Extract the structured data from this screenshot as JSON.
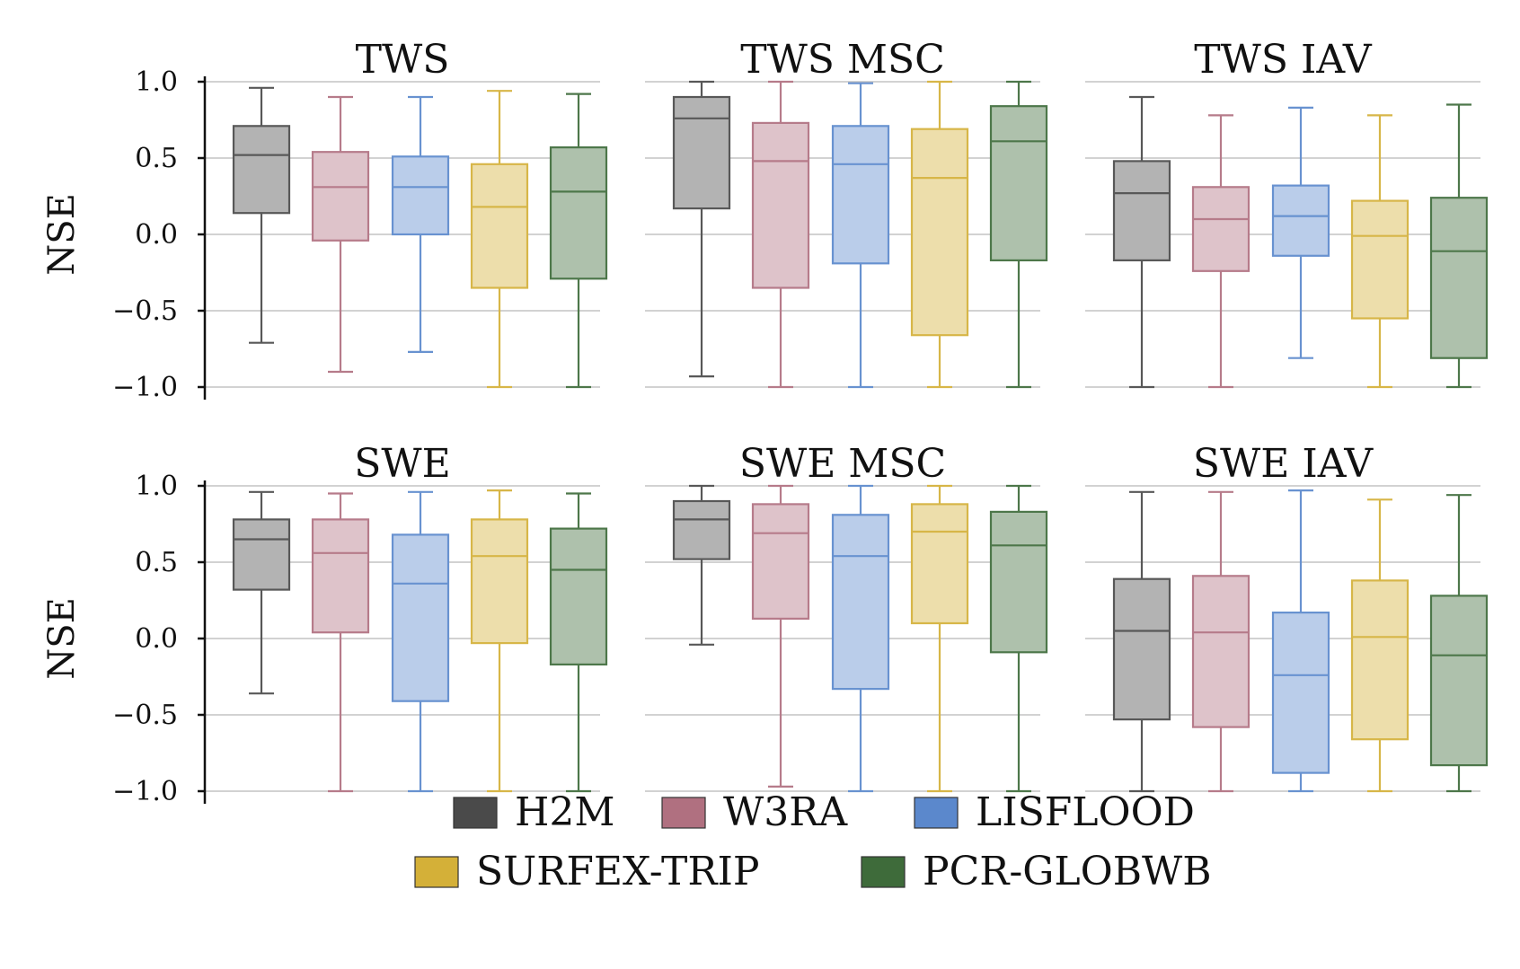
{
  "chart_data": {
    "type": "box",
    "ylabel": "NSE",
    "ylim": [
      -1.0,
      1.0
    ],
    "y_ticks": [
      1.0,
      0.5,
      0.0,
      -0.5,
      -1.0
    ],
    "y_tick_labels": [
      "1.0",
      "0.5",
      "0.0",
      "−0.5",
      "−1.0"
    ],
    "grid": true,
    "legend_position": "bottom-center",
    "series": [
      {
        "name": "H2M",
        "color": "#4a4a4a"
      },
      {
        "name": "W3RA",
        "color": "#b07080"
      },
      {
        "name": "LISFLOOD",
        "color": "#5b88cc"
      },
      {
        "name": "SURFEX-TRIP",
        "color": "#d4b038"
      },
      {
        "name": "PCR-GLOBWB",
        "color": "#3e6b3a"
      }
    ],
    "panels": [
      {
        "title": "TWS",
        "boxes": [
          {
            "model": "H2M",
            "whisker_low": -0.71,
            "q1": 0.14,
            "median": 0.52,
            "q3": 0.71,
            "whisker_high": 0.96
          },
          {
            "model": "W3RA",
            "whisker_low": -0.9,
            "q1": -0.04,
            "median": 0.31,
            "q3": 0.54,
            "whisker_high": 0.9
          },
          {
            "model": "LISFLOOD",
            "whisker_low": -0.77,
            "q1": 0.0,
            "median": 0.31,
            "q3": 0.51,
            "whisker_high": 0.9
          },
          {
            "model": "SURFEX-TRIP",
            "whisker_low": -1.0,
            "q1": -0.35,
            "median": 0.18,
            "q3": 0.46,
            "whisker_high": 0.94
          },
          {
            "model": "PCR-GLOBWB",
            "whisker_low": -1.0,
            "q1": -0.29,
            "median": 0.28,
            "q3": 0.57,
            "whisker_high": 0.92
          }
        ]
      },
      {
        "title": "TWS MSC",
        "boxes": [
          {
            "model": "H2M",
            "whisker_low": -0.93,
            "q1": 0.17,
            "median": 0.76,
            "q3": 0.9,
            "whisker_high": 1.0
          },
          {
            "model": "W3RA",
            "whisker_low": -1.0,
            "q1": -0.35,
            "median": 0.48,
            "q3": 0.73,
            "whisker_high": 1.0
          },
          {
            "model": "LISFLOOD",
            "whisker_low": -1.0,
            "q1": -0.19,
            "median": 0.46,
            "q3": 0.71,
            "whisker_high": 0.99
          },
          {
            "model": "SURFEX-TRIP",
            "whisker_low": -1.0,
            "q1": -0.66,
            "median": 0.37,
            "q3": 0.69,
            "whisker_high": 1.0
          },
          {
            "model": "PCR-GLOBWB",
            "whisker_low": -1.0,
            "q1": -0.17,
            "median": 0.61,
            "q3": 0.84,
            "whisker_high": 1.0
          }
        ]
      },
      {
        "title": "TWS IAV",
        "boxes": [
          {
            "model": "H2M",
            "whisker_low": -1.0,
            "q1": -0.17,
            "median": 0.27,
            "q3": 0.48,
            "whisker_high": 0.9
          },
          {
            "model": "W3RA",
            "whisker_low": -1.0,
            "q1": -0.24,
            "median": 0.1,
            "q3": 0.31,
            "whisker_high": 0.78
          },
          {
            "model": "LISFLOOD",
            "whisker_low": -0.81,
            "q1": -0.14,
            "median": 0.12,
            "q3": 0.32,
            "whisker_high": 0.83
          },
          {
            "model": "SURFEX-TRIP",
            "whisker_low": -1.0,
            "q1": -0.55,
            "median": -0.01,
            "q3": 0.22,
            "whisker_high": 0.78
          },
          {
            "model": "PCR-GLOBWB",
            "whisker_low": -1.0,
            "q1": -0.81,
            "median": -0.11,
            "q3": 0.24,
            "whisker_high": 0.85
          }
        ]
      },
      {
        "title": "SWE",
        "boxes": [
          {
            "model": "H2M",
            "whisker_low": -0.36,
            "q1": 0.32,
            "median": 0.65,
            "q3": 0.78,
            "whisker_high": 0.96
          },
          {
            "model": "W3RA",
            "whisker_low": -1.0,
            "q1": 0.04,
            "median": 0.56,
            "q3": 0.78,
            "whisker_high": 0.95
          },
          {
            "model": "LISFLOOD",
            "whisker_low": -1.0,
            "q1": -0.41,
            "median": 0.36,
            "q3": 0.68,
            "whisker_high": 0.96
          },
          {
            "model": "SURFEX-TRIP",
            "whisker_low": -1.0,
            "q1": -0.03,
            "median": 0.54,
            "q3": 0.78,
            "whisker_high": 0.97
          },
          {
            "model": "PCR-GLOBWB",
            "whisker_low": -1.0,
            "q1": -0.17,
            "median": 0.45,
            "q3": 0.72,
            "whisker_high": 0.95
          }
        ]
      },
      {
        "title": "SWE MSC",
        "boxes": [
          {
            "model": "H2M",
            "whisker_low": -0.04,
            "q1": 0.52,
            "median": 0.78,
            "q3": 0.9,
            "whisker_high": 1.0
          },
          {
            "model": "W3RA",
            "whisker_low": -0.97,
            "q1": 0.13,
            "median": 0.69,
            "q3": 0.88,
            "whisker_high": 1.0
          },
          {
            "model": "LISFLOOD",
            "whisker_low": -1.0,
            "q1": -0.33,
            "median": 0.54,
            "q3": 0.81,
            "whisker_high": 1.0
          },
          {
            "model": "SURFEX-TRIP",
            "whisker_low": -1.0,
            "q1": 0.1,
            "median": 0.7,
            "q3": 0.88,
            "whisker_high": 1.0
          },
          {
            "model": "PCR-GLOBWB",
            "whisker_low": -1.0,
            "q1": -0.09,
            "median": 0.61,
            "q3": 0.83,
            "whisker_high": 1.0
          }
        ]
      },
      {
        "title": "SWE IAV",
        "boxes": [
          {
            "model": "H2M",
            "whisker_low": -1.0,
            "q1": -0.53,
            "median": 0.05,
            "q3": 0.39,
            "whisker_high": 0.96
          },
          {
            "model": "W3RA",
            "whisker_low": -1.0,
            "q1": -0.58,
            "median": 0.04,
            "q3": 0.41,
            "whisker_high": 0.96
          },
          {
            "model": "LISFLOOD",
            "whisker_low": -1.0,
            "q1": -0.88,
            "median": -0.24,
            "q3": 0.17,
            "whisker_high": 0.97
          },
          {
            "model": "SURFEX-TRIP",
            "whisker_low": -1.0,
            "q1": -0.66,
            "median": 0.01,
            "q3": 0.38,
            "whisker_high": 0.91
          },
          {
            "model": "PCR-GLOBWB",
            "whisker_low": -1.0,
            "q1": -0.83,
            "median": -0.11,
            "q3": 0.28,
            "whisker_high": 0.94
          }
        ]
      }
    ]
  }
}
